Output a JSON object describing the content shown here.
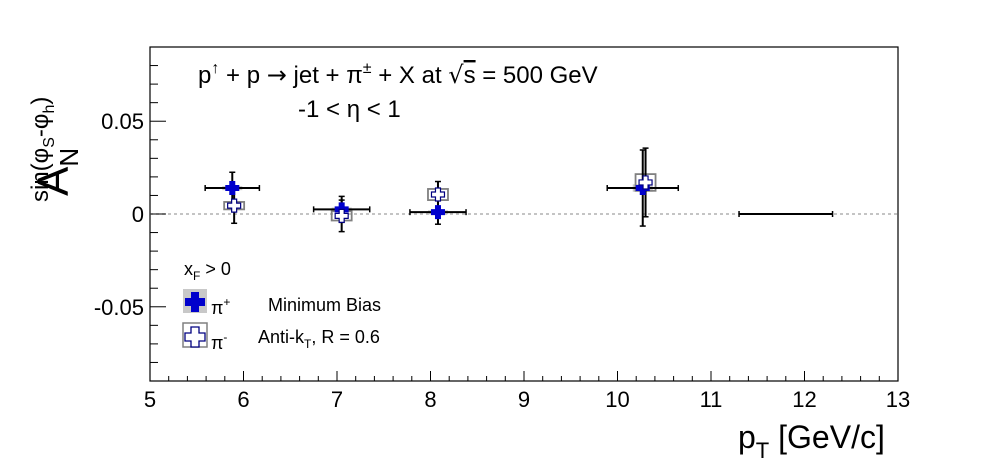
{
  "chart_data": {
    "type": "scatter",
    "title_line1_pre": "p",
    "title_arrow_up": "↑",
    "title_line1_mid": " + p ",
    "title_rightarrow": "→",
    "title_line1_post": " jet + π",
    "title_pm": "±",
    "title_line1_tail": " + X at ",
    "title_sqrt": "√",
    "title_s": "s",
    "title_energy": " = 500 GeV",
    "title_line2": "-1 < η < 1",
    "ylabel_main": "A",
    "ylabel_sub": "N",
    "ylabel_sup": "sin(φ",
    "ylabel_sup_s": "S",
    "ylabel_sup_mid": "-φ",
    "ylabel_sup_h": "h",
    "ylabel_sup_end": ")",
    "xlabel_main": "p",
    "xlabel_sub": "T",
    "xlabel_unit": " [GeV/c]",
    "xlim": [
      5,
      13
    ],
    "ylim": [
      -0.09,
      0.09
    ],
    "x_ticks": [
      5,
      6,
      7,
      8,
      9,
      10,
      11,
      12,
      13
    ],
    "x_tick_labels": [
      "5",
      "6",
      "7",
      "8",
      "9",
      "10",
      "11",
      "12",
      "13"
    ],
    "y_ticks": [
      -0.05,
      0,
      0.05
    ],
    "y_tick_labels": [
      "-0.05",
      "0",
      "0.05"
    ],
    "zero_line": true,
    "legend": {
      "placement": "bottom-left",
      "header": "x",
      "header_sub": "F",
      "header_rest": " > 0",
      "entries": [
        {
          "symbol": "filled-cross",
          "label": "π",
          "label_sup": "+",
          "note": "Minimum Bias"
        },
        {
          "symbol": "open-cross",
          "label": "π",
          "label_sup": "-",
          "note": "Anti-k",
          "note_sub": "T",
          "note_rest": ", R = 0.6"
        }
      ]
    },
    "series": [
      {
        "name": "π+",
        "color": "#0000cc",
        "marker": "filled-cross",
        "points": [
          {
            "x": 5.88,
            "y": 0.014,
            "xerr_lo": 0.29,
            "xerr_hi": 0.29,
            "yerr": 0.0085,
            "sys": 0.001
          },
          {
            "x": 7.05,
            "y": 0.0025,
            "xerr_lo": 0.3,
            "xerr_hi": 0.3,
            "yerr": 0.007,
            "sys": 0.001
          },
          {
            "x": 8.08,
            "y": 0.001,
            "xerr_lo": 0.3,
            "xerr_hi": 0.3,
            "yerr": 0.0065,
            "sys": 0.001
          },
          {
            "x": 10.27,
            "y": 0.014,
            "xerr_lo": 0.38,
            "xerr_hi": 0.38,
            "yerr": 0.0205,
            "sys": 0.002
          },
          {
            "x": 11.8,
            "y": 0.0,
            "xerr_lo": 0.5,
            "xerr_hi": 0.5,
            "yerr": 0.0,
            "sys": 0.0
          }
        ]
      },
      {
        "name": "π-",
        "color": "#666680",
        "marker": "open-cross",
        "points": [
          {
            "x": 5.9,
            "y": 0.0045,
            "xerr_lo": 0.0,
            "xerr_hi": 0.0,
            "yerr": 0.0095,
            "sys": 0.002
          },
          {
            "x": 7.05,
            "y": -0.001,
            "xerr_lo": 0.0,
            "xerr_hi": 0.0,
            "yerr": 0.0085,
            "sys": 0.0025
          },
          {
            "x": 8.08,
            "y": 0.0105,
            "xerr_lo": 0.0,
            "xerr_hi": 0.0,
            "yerr": 0.007,
            "sys": 0.003
          },
          {
            "x": 10.3,
            "y": 0.017,
            "xerr_lo": 0.0,
            "xerr_hi": 0.0,
            "yerr": 0.0185,
            "sys": 0.0045
          }
        ]
      }
    ]
  }
}
